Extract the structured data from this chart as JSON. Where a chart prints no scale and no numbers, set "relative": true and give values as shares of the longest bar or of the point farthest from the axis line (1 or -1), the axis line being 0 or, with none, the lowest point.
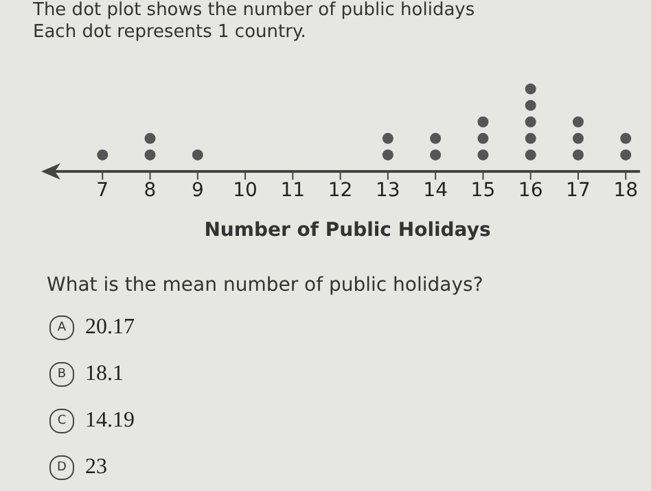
{
  "chart_data": {
    "type": "scatter",
    "title": "The dot plot shows the number of public holidays",
    "subtitle": "Each dot represents 1 country.",
    "xlabel": "Number of Public Holidays",
    "x": [
      7,
      8,
      8,
      9,
      13,
      13,
      14,
      14,
      15,
      15,
      15,
      16,
      16,
      16,
      16,
      16,
      17,
      17,
      17,
      18,
      18
    ],
    "values": [
      0.2,
      0.2,
      0.4,
      0.2,
      0.2,
      0.4,
      0.2,
      0.4,
      0.2,
      0.4,
      0.6,
      0.2,
      0.4,
      0.6,
      0.8,
      1,
      0.2,
      0.4,
      0.6,
      0.2,
      0.4
    ],
    "relative": true,
    "color": "#555555",
    "marker": "circle",
    "xlim": [
      6,
      18.3
    ],
    "xticks": [
      7,
      8,
      9,
      10,
      11,
      12,
      13,
      14,
      15,
      16,
      17,
      18
    ],
    "tick_labels": "x",
    "grid": false,
    "annotations": [
      "What is the mean number of public holidays?",
      "A",
      "20.17",
      "B",
      "18.1",
      "C",
      "14.19",
      "D",
      "23"
    ]
  }
}
